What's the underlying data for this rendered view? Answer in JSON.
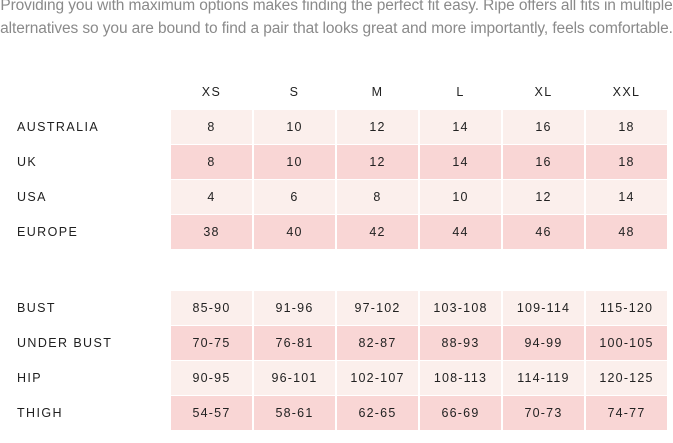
{
  "intro": {
    "line1": "Providing you with maximum options makes finding the perfect fit easy. Ripe offers all fits in multiple",
    "line2": "alternatives so you are bound to find a pair that looks great and more importantly, feels comfortable."
  },
  "sizes": [
    "XS",
    "S",
    "M",
    "L",
    "XL",
    "XXL"
  ],
  "conversion_rows": [
    {
      "label": "AUSTRALIA",
      "values": [
        "8",
        "10",
        "12",
        "14",
        "16",
        "18"
      ]
    },
    {
      "label": "UK",
      "values": [
        "8",
        "10",
        "12",
        "14",
        "16",
        "18"
      ]
    },
    {
      "label": "USA",
      "values": [
        "4",
        "6",
        "8",
        "10",
        "12",
        "14"
      ]
    },
    {
      "label": "EUROPE",
      "values": [
        "38",
        "40",
        "42",
        "44",
        "46",
        "48"
      ]
    }
  ],
  "measurement_rows": [
    {
      "label": "BUST",
      "values": [
        "85-90",
        "91-96",
        "97-102",
        "103-108",
        "109-114",
        "115-120"
      ]
    },
    {
      "label": "UNDER BUST",
      "values": [
        "70-75",
        "76-81",
        "82-87",
        "88-93",
        "94-99",
        "100-105"
      ]
    },
    {
      "label": "HIP",
      "values": [
        "90-95",
        "96-101",
        "102-107",
        "108-113",
        "114-119",
        "120-125"
      ]
    },
    {
      "label": "THIGH",
      "values": [
        "54-57",
        "58-61",
        "62-65",
        "66-69",
        "70-73",
        "74-77"
      ]
    }
  ],
  "colors": {
    "row_light": "#fbefec",
    "row_dark": "#f9d6d5",
    "intro_text": "#8a8a8a"
  }
}
